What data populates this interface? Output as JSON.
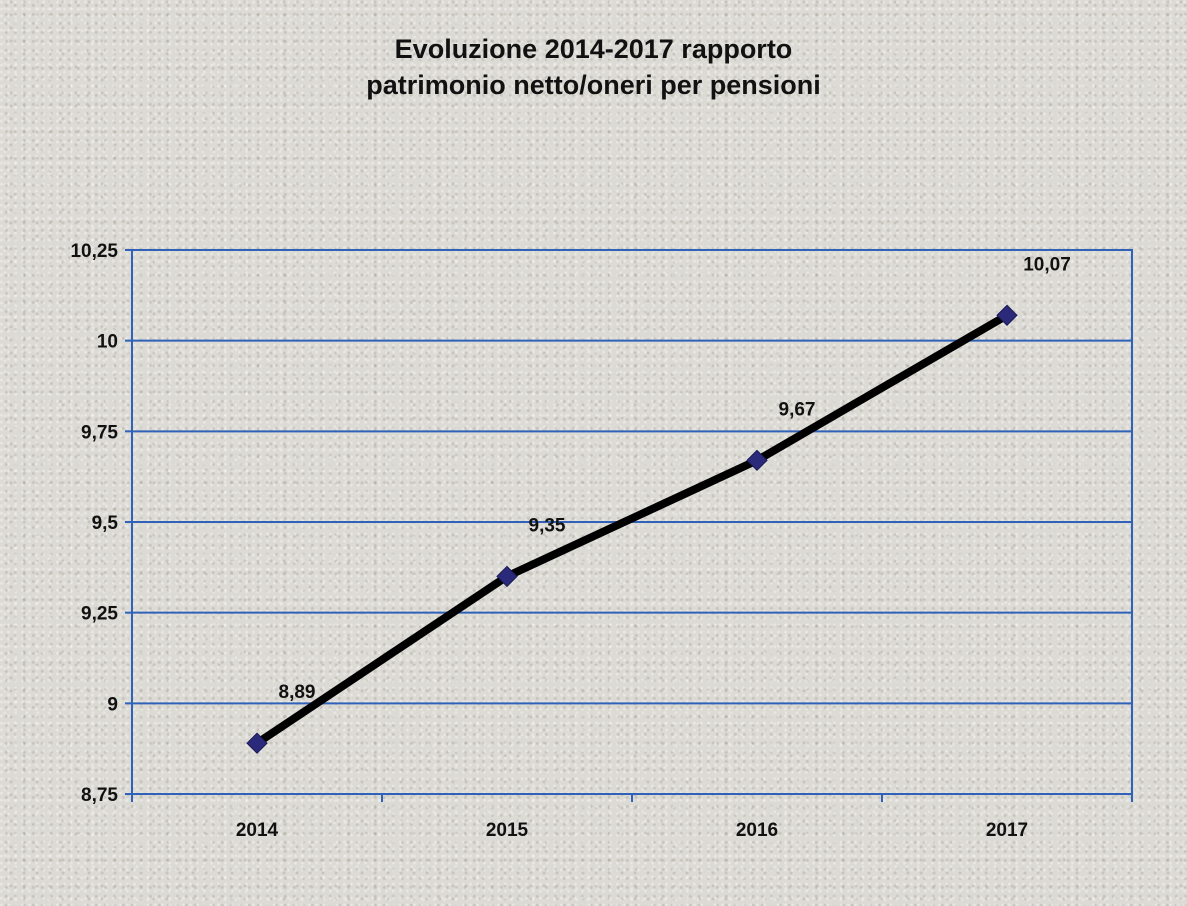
{
  "chart_data": {
    "type": "line",
    "title_lines": [
      "Evoluzione 2014-2017 rapporto",
      "patrimonio netto/oneri per pensioni"
    ],
    "categories": [
      "2014",
      "2015",
      "2016",
      "2017"
    ],
    "values": [
      8.89,
      9.35,
      9.67,
      10.07
    ],
    "data_labels": [
      "8,89",
      "9,35",
      "9,67",
      "10,07"
    ],
    "y_ticks": [
      8.75,
      9,
      9.25,
      9.5,
      9.75,
      10,
      10.25
    ],
    "y_tick_labels": [
      "8,75",
      "9",
      "9,25",
      "9,5",
      "9,75",
      "10",
      "10,25"
    ],
    "ylim": [
      8.75,
      10.25
    ],
    "xlabel": "",
    "ylabel": "",
    "grid": true,
    "legend": "none",
    "colors": {
      "line": "#000000",
      "marker": "#2b2a7a",
      "grid": "#2f62b8",
      "axis": "#2f62b8"
    }
  }
}
